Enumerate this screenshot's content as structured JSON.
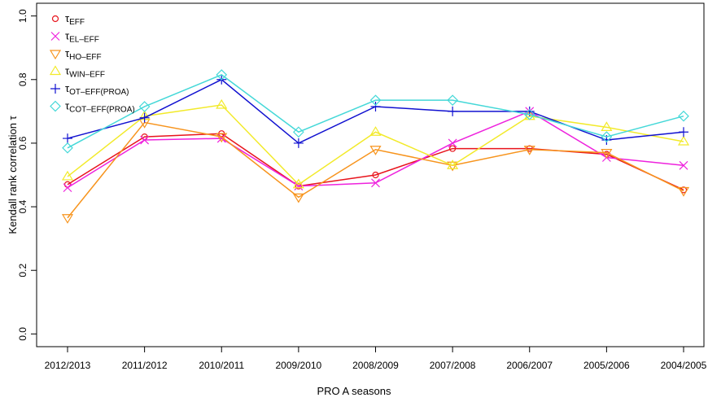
{
  "chart_data": {
    "type": "line",
    "xlabel": "PRO A seasons",
    "ylabel": "Kendall rank correlation τ",
    "categories": [
      "2012/2013",
      "2011/2012",
      "2010/2011",
      "2009/2010",
      "2008/2009",
      "2007/2008",
      "2006/2007",
      "2005/2006",
      "2004/2005"
    ],
    "ylim": [
      -0.04,
      1.04
    ],
    "yticks": [
      {
        "value": 0,
        "label": "0.0"
      },
      0.2,
      0.4,
      0.6,
      0.8,
      {
        "value": 1,
        "label": "1.0"
      }
    ],
    "legend": "topleft",
    "series": [
      {
        "name": "τEFF",
        "color": "#e8141c",
        "marker": "circle",
        "values": [
          0.47,
          0.62,
          0.63,
          0.465,
          0.5,
          0.583,
          0.583,
          0.565,
          0.453
        ]
      },
      {
        "name": "τEL–EFF",
        "color": "#ee22dd",
        "marker": "x",
        "values": [
          0.46,
          0.61,
          0.615,
          0.465,
          0.475,
          0.6,
          0.7,
          0.555,
          0.53
        ]
      },
      {
        "name": "τHO–EFF",
        "color": "#f7941d",
        "marker": "triangle-down",
        "values": [
          0.365,
          0.665,
          0.62,
          0.43,
          0.58,
          0.53,
          0.58,
          0.57,
          0.45
        ]
      },
      {
        "name": "τWIN–EFF",
        "color": "#f2ea2a",
        "marker": "triangle-up",
        "values": [
          0.495,
          0.685,
          0.72,
          0.47,
          0.635,
          0.53,
          0.685,
          0.65,
          0.605
        ]
      },
      {
        "name": "τOT–EFF(PROA)",
        "color": "#1010d0",
        "marker": "plus",
        "values": [
          0.615,
          0.68,
          0.8,
          0.6,
          0.715,
          0.7,
          0.7,
          0.61,
          0.635
        ]
      },
      {
        "name": "τCOT–EFF(PROA)",
        "color": "#44d8d8",
        "marker": "diamond",
        "values": [
          0.585,
          0.715,
          0.815,
          0.635,
          0.735,
          0.735,
          0.69,
          0.62,
          0.685
        ]
      }
    ]
  }
}
